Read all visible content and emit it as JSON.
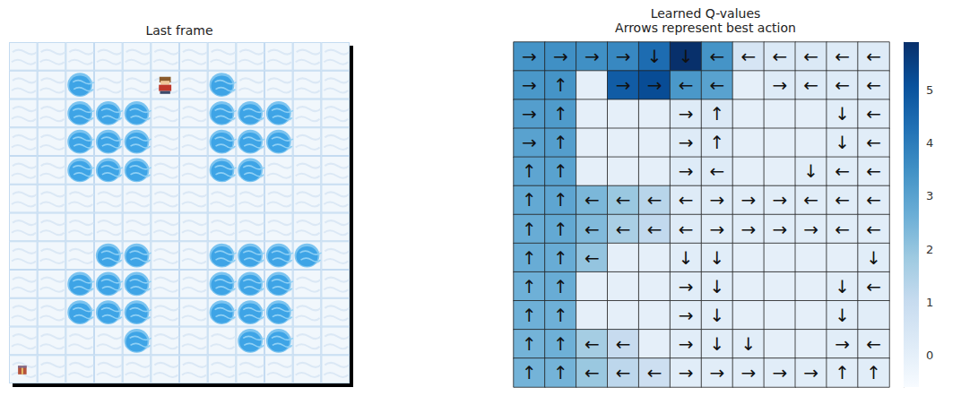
{
  "frame": {
    "title": "Last frame",
    "rows": 12,
    "cols": 12,
    "holes": [
      [
        1,
        2
      ],
      [
        1,
        7
      ],
      [
        2,
        2
      ],
      [
        2,
        3
      ],
      [
        2,
        4
      ],
      [
        2,
        7
      ],
      [
        2,
        8
      ],
      [
        2,
        9
      ],
      [
        3,
        2
      ],
      [
        3,
        3
      ],
      [
        3,
        4
      ],
      [
        3,
        7
      ],
      [
        3,
        8
      ],
      [
        3,
        9
      ],
      [
        4,
        2
      ],
      [
        4,
        3
      ],
      [
        4,
        4
      ],
      [
        4,
        7
      ],
      [
        4,
        8
      ],
      [
        7,
        3
      ],
      [
        7,
        4
      ],
      [
        7,
        7
      ],
      [
        7,
        8
      ],
      [
        7,
        9
      ],
      [
        7,
        10
      ],
      [
        8,
        2
      ],
      [
        8,
        3
      ],
      [
        8,
        4
      ],
      [
        8,
        7
      ],
      [
        8,
        8
      ],
      [
        8,
        9
      ],
      [
        9,
        2
      ],
      [
        9,
        3
      ],
      [
        9,
        4
      ],
      [
        9,
        7
      ],
      [
        9,
        8
      ],
      [
        9,
        9
      ],
      [
        10,
        4
      ],
      [
        10,
        8
      ],
      [
        10,
        9
      ]
    ],
    "player": [
      1,
      5
    ],
    "goal": [
      11,
      0
    ]
  },
  "chart_data": {
    "type": "heatmap",
    "title": "Learned Q-values",
    "subtitle": "Arrows represent best action",
    "tick_labels": false,
    "values": [
      [
        3.4,
        3.5,
        3.5,
        3.7,
        4.4,
        5.9,
        3.4,
        0.5,
        0.3,
        0.3,
        0.2,
        0.2
      ],
      [
        3.3,
        3.4,
        0,
        4.8,
        5.2,
        3.3,
        3.0,
        0,
        0.2,
        0.2,
        0.2,
        0.2
      ],
      [
        3.1,
        3.2,
        0,
        0,
        0,
        0.2,
        0.3,
        0,
        0,
        0,
        0.1,
        0.1
      ],
      [
        3.0,
        3.1,
        0,
        0,
        0,
        0.2,
        0.2,
        0,
        0,
        0,
        0.1,
        0.1
      ],
      [
        2.9,
        3.0,
        0,
        0,
        0,
        0.2,
        0.2,
        0,
        0,
        0.1,
        0.1,
        0.1
      ],
      [
        2.8,
        2.9,
        2.4,
        1.9,
        1.3,
        0.2,
        0.2,
        0.1,
        0.1,
        0.1,
        0.1,
        0.1
      ],
      [
        2.7,
        2.8,
        2.3,
        1.6,
        1.1,
        0.2,
        0.1,
        0.1,
        0.1,
        0.1,
        0.1,
        0.1
      ],
      [
        2.7,
        2.7,
        2.0,
        0,
        0,
        0.1,
        0.1,
        0,
        0,
        0,
        0,
        0.1
      ],
      [
        2.6,
        2.7,
        0,
        0,
        0,
        0.1,
        0.1,
        0,
        0,
        0,
        0.1,
        0.1
      ],
      [
        2.6,
        2.6,
        0,
        0,
        0,
        0.1,
        0.1,
        0,
        0,
        0,
        0.1,
        0.1
      ],
      [
        2.5,
        2.6,
        1.7,
        1.0,
        0,
        0.1,
        0.1,
        0.1,
        0,
        0,
        0.1,
        0.1
      ],
      [
        2.5,
        2.5,
        1.9,
        1.2,
        0.8,
        0.1,
        0.1,
        0.1,
        0.1,
        0.1,
        0.1,
        0.1
      ]
    ],
    "arrows": [
      [
        "→",
        "→",
        "→",
        "→",
        "↓",
        "↓",
        "←",
        "←",
        "←",
        "←",
        "←",
        "←"
      ],
      [
        "→",
        "↑",
        null,
        "→",
        "→",
        "←",
        "←",
        null,
        "→",
        "←",
        "←",
        "←"
      ],
      [
        "→",
        "↑",
        null,
        null,
        null,
        "→",
        "↑",
        null,
        null,
        null,
        "↓",
        "←"
      ],
      [
        "→",
        "↑",
        null,
        null,
        null,
        "→",
        "↑",
        null,
        null,
        null,
        "↓",
        "←"
      ],
      [
        "↑",
        "↑",
        null,
        null,
        null,
        "→",
        "←",
        null,
        null,
        "↓",
        "←",
        "←"
      ],
      [
        "↑",
        "↑",
        "←",
        "←",
        "←",
        "←",
        "→",
        "→",
        "→",
        "←",
        "←",
        "←"
      ],
      [
        "↑",
        "↑",
        "←",
        "←",
        "←",
        "←",
        "→",
        "→",
        "→",
        "→",
        "←",
        "←"
      ],
      [
        "↑",
        "↑",
        "←",
        null,
        null,
        "↓",
        "↓",
        null,
        null,
        null,
        null,
        "↓"
      ],
      [
        "↑",
        "↑",
        null,
        null,
        null,
        "→",
        "↓",
        null,
        null,
        null,
        "↓",
        "←"
      ],
      [
        "↑",
        "↑",
        null,
        null,
        null,
        "→",
        "↓",
        null,
        null,
        null,
        "↓",
        null
      ],
      [
        "↑",
        "↑",
        "←",
        "←",
        null,
        "→",
        "↓",
        "↓",
        null,
        null,
        "→",
        "←"
      ],
      [
        "↑",
        "↑",
        "←",
        "←",
        "←",
        "→",
        "→",
        "→",
        "→",
        "→",
        "↑",
        "↑"
      ]
    ],
    "colorbar": {
      "range": [
        -0.6,
        5.9
      ],
      "ticks": [
        0,
        1,
        2,
        3,
        4,
        5
      ]
    }
  }
}
